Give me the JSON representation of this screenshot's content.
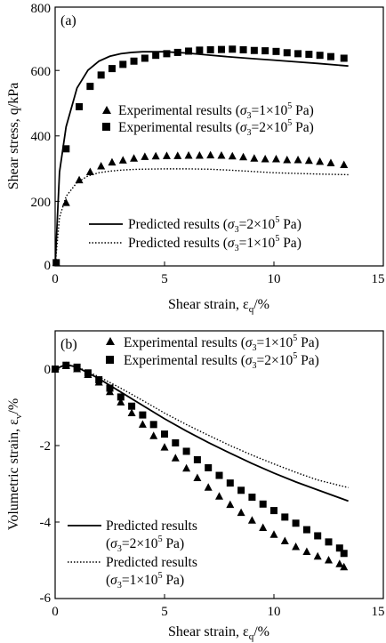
{
  "chart_data": [
    {
      "type": "scatter",
      "panel_label": "(a)",
      "xlabel": "Shear strain, ε_q/%",
      "ylabel": "Shear stress, q/kPa",
      "xlim": [
        0,
        15
      ],
      "ylim": [
        0,
        800
      ],
      "xticks": [
        "0",
        "5",
        "10",
        "15"
      ],
      "yticks": [
        "0",
        "200",
        "400",
        "600",
        "800"
      ],
      "legend_position": "center-right",
      "series": [
        {
          "name": "Experimental results (σ3=1×10⁵ Pa)",
          "marker": "triangle",
          "x": [
            0.05,
            0.5,
            1.1,
            1.6,
            2.1,
            2.6,
            3.1,
            3.6,
            4.1,
            4.6,
            5.1,
            5.6,
            6.1,
            6.6,
            7.1,
            7.6,
            8.1,
            8.6,
            9.1,
            9.6,
            10.1,
            10.6,
            11.1,
            11.6,
            12.1,
            12.6,
            13.2
          ],
          "y": [
            10,
            195,
            265,
            290,
            308,
            320,
            326,
            332,
            337,
            339,
            340,
            340,
            341,
            341,
            342,
            341,
            339,
            336,
            332,
            330,
            330,
            327,
            327,
            325,
            322,
            318,
            312
          ]
        },
        {
          "name": "Experimental results (σ3=2×10⁵ Pa)",
          "marker": "square",
          "x": [
            0.05,
            0.5,
            1.1,
            1.6,
            2.1,
            2.6,
            3.1,
            3.6,
            4.1,
            4.6,
            5.1,
            5.6,
            6.1,
            6.6,
            7.1,
            7.6,
            8.1,
            8.6,
            9.1,
            9.6,
            10.1,
            10.6,
            11.1,
            11.6,
            12.1,
            12.6,
            13.2
          ],
          "y": [
            10,
            362,
            492,
            555,
            590,
            610,
            623,
            633,
            642,
            651,
            656,
            660,
            664,
            667,
            668,
            669,
            670,
            668,
            666,
            665,
            663,
            659,
            656,
            654,
            651,
            647,
            642
          ]
        },
        {
          "name": "Predicted results (σ3=2×10⁵ Pa)",
          "line": "solid",
          "x": [
            0,
            0.2,
            0.5,
            1.0,
            1.5,
            2.0,
            2.5,
            3.0,
            3.5,
            4.0,
            5.0,
            6.0,
            7.0,
            8.0,
            9.0,
            10.0,
            11.0,
            12.0,
            13.4
          ],
          "y": [
            0,
            290,
            430,
            550,
            605,
            633,
            648,
            656,
            660,
            662,
            662,
            658,
            652,
            646,
            641,
            636,
            631,
            626,
            618
          ]
        },
        {
          "name": "Predicted results (σ3=1×10⁵ Pa)",
          "line": "dotted",
          "x": [
            0,
            0.2,
            0.5,
            1.0,
            1.5,
            2.0,
            2.5,
            3.0,
            3.5,
            4.0,
            5.0,
            6.0,
            7.0,
            8.0,
            9.0,
            10.0,
            11.0,
            12.0,
            13.4
          ],
          "y": [
            0,
            150,
            215,
            258,
            278,
            288,
            293,
            296,
            298,
            299,
            300,
            300,
            299,
            296,
            292,
            288,
            286,
            284,
            282
          ]
        }
      ]
    },
    {
      "type": "scatter",
      "panel_label": "(b)",
      "xlabel": "Shear strain, ε_q/%",
      "ylabel": "Volumetric strain, ε_v/%",
      "xlim": [
        0,
        15
      ],
      "ylim": [
        -6,
        1
      ],
      "xticks": [
        "0",
        "5",
        "10",
        "15"
      ],
      "yticks": [
        "0",
        "-2",
        "-4",
        "-6"
      ],
      "legend_position": "top-right and bottom-left",
      "series": [
        {
          "name": "Experimental results (σ3=1×10⁵ Pa)",
          "marker": "triangle",
          "x": [
            0.0,
            0.5,
            1.0,
            1.5,
            2.0,
            2.5,
            3.0,
            3.5,
            4.0,
            4.5,
            5.0,
            5.5,
            6.0,
            6.5,
            7.0,
            7.5,
            8.0,
            8.5,
            9.0,
            9.5,
            10.0,
            10.5,
            11.0,
            11.5,
            12.0,
            12.5,
            13.0,
            13.2
          ],
          "y": [
            0.0,
            0.08,
            0.0,
            -0.15,
            -0.35,
            -0.6,
            -0.87,
            -1.15,
            -1.45,
            -1.75,
            -2.05,
            -2.33,
            -2.6,
            -2.85,
            -3.1,
            -3.33,
            -3.55,
            -3.76,
            -3.96,
            -4.15,
            -4.33,
            -4.5,
            -4.65,
            -4.78,
            -4.9,
            -5.0,
            -5.1,
            -5.18
          ]
        },
        {
          "name": "Experimental results (σ3=2×10⁵ Pa)",
          "marker": "square",
          "x": [
            0.0,
            0.5,
            1.0,
            1.5,
            2.0,
            2.5,
            3.0,
            3.5,
            4.0,
            4.5,
            5.0,
            5.5,
            6.0,
            6.5,
            7.0,
            7.5,
            8.0,
            8.5,
            9.0,
            9.5,
            10.0,
            10.5,
            11.0,
            11.5,
            12.0,
            12.5,
            13.0,
            13.2
          ],
          "y": [
            0.0,
            0.1,
            0.05,
            -0.1,
            -0.28,
            -0.5,
            -0.73,
            -0.97,
            -1.2,
            -1.45,
            -1.7,
            -1.93,
            -2.15,
            -2.37,
            -2.58,
            -2.78,
            -2.98,
            -3.17,
            -3.35,
            -3.53,
            -3.7,
            -3.87,
            -4.03,
            -4.2,
            -4.36,
            -4.52,
            -4.68,
            -4.82
          ]
        },
        {
          "name": "Predicted results (σ3=2×10⁵ Pa)",
          "line": "solid",
          "x": [
            0,
            0.5,
            1.0,
            2.0,
            3.0,
            4.0,
            5.0,
            6.0,
            7.0,
            8.0,
            9.0,
            10.0,
            11.0,
            12.0,
            13.4
          ],
          "y": [
            0.0,
            0.12,
            0.05,
            -0.25,
            -0.6,
            -0.95,
            -1.3,
            -1.62,
            -1.92,
            -2.2,
            -2.47,
            -2.72,
            -2.95,
            -3.16,
            -3.45
          ]
        },
        {
          "name": "Predicted results (σ3=1×10⁵ Pa)",
          "line": "dotted",
          "x": [
            0,
            0.5,
            1.0,
            2.0,
            3.0,
            4.0,
            5.0,
            6.0,
            7.0,
            8.0,
            9.0,
            10.0,
            11.0,
            12.0,
            13.4
          ],
          "y": [
            0.0,
            0.12,
            0.06,
            -0.2,
            -0.5,
            -0.82,
            -1.15,
            -1.45,
            -1.73,
            -2.0,
            -2.25,
            -2.48,
            -2.7,
            -2.9,
            -3.1
          ]
        }
      ]
    }
  ],
  "text": {
    "a": {
      "panel": "(a)",
      "ylabel": "Shear stress, q/kPa",
      "xlabel_main": "Shear strain, ε",
      "xlabel_sub": "q",
      "xlabel_tail": "/%",
      "legend": [
        {
          "prefix": "Experimental results (",
          "var": "σ",
          "sub": "3",
          "mid": "=1×10",
          "sup": "5",
          "tail": " Pa)"
        },
        {
          "prefix": "Experimental results (",
          "var": "σ",
          "sub": "3",
          "mid": "=2×10",
          "sup": "5",
          "tail": " Pa)"
        },
        {
          "prefix": "Predicted results (",
          "var": "σ",
          "sub": "3",
          "mid": "=2×10",
          "sup": "5",
          "tail": " Pa)"
        },
        {
          "prefix": "Predicted results (",
          "var": "σ",
          "sub": "3",
          "mid": "=1×10",
          "sup": "5",
          "tail": " Pa)"
        }
      ]
    },
    "b": {
      "panel": "(b)",
      "ylabel_main": "Volumetric strain, ε",
      "ylabel_sub": "v",
      "ylabel_tail": "/%",
      "xlabel_main": "Shear strain, ε",
      "xlabel_sub": "q",
      "xlabel_tail": "/%",
      "legend_exp": [
        {
          "prefix": "Experimental results (",
          "var": "σ",
          "sub": "3",
          "mid": "=1×10",
          "sup": "5",
          "tail": " Pa)"
        },
        {
          "prefix": "Experimental results (",
          "var": "σ",
          "sub": "3",
          "mid": "=2×10",
          "sup": "5",
          "tail": " Pa)"
        }
      ],
      "legend_pred": [
        {
          "line1": "Predicted results",
          "prefix": "(",
          "var": "σ",
          "sub": "3",
          "mid": "=2×10",
          "sup": "5",
          "tail": " Pa)"
        },
        {
          "line1": "Predicted results",
          "prefix": "(",
          "var": "σ",
          "sub": "3",
          "mid": "=1×10",
          "sup": "5",
          "tail": " Pa)"
        }
      ]
    }
  }
}
